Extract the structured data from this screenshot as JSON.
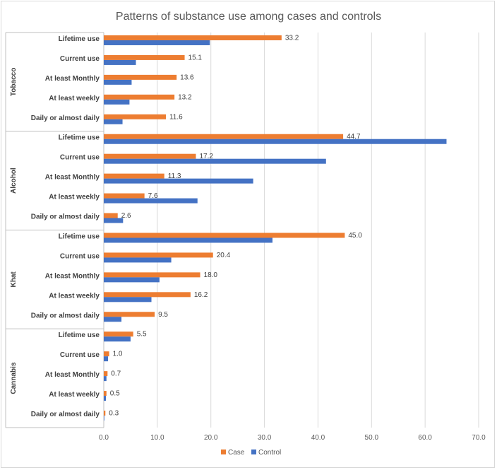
{
  "chart_data": {
    "type": "bar",
    "orientation": "horizontal",
    "title": "Patterns of substance use among cases and controls",
    "xlim": [
      0,
      70
    ],
    "xticks": [
      "0.0",
      "10.0",
      "20.0",
      "30.0",
      "40.0",
      "50.0",
      "60.0",
      "70.0"
    ],
    "grid": true,
    "legend_position": "bottom",
    "series": [
      {
        "name": "Case",
        "color": "#ED7D31"
      },
      {
        "name": "Control",
        "color": "#4472C4"
      }
    ],
    "groups": [
      {
        "name": "Tobacco",
        "categories": [
          {
            "label": "Lifetime use",
            "case": 33.2,
            "case_label": "33.2",
            "control": 19.8
          },
          {
            "label": "Current use",
            "case": 15.1,
            "case_label": "15.1",
            "control": 6.0
          },
          {
            "label": "At least Monthly",
            "case": 13.6,
            "case_label": "13.6",
            "control": 5.2
          },
          {
            "label": "At least weekly",
            "case": 13.2,
            "case_label": "13.2",
            "control": 4.8
          },
          {
            "label": "Daily or almost daily",
            "case": 11.6,
            "case_label": "11.6",
            "control": 3.5
          }
        ]
      },
      {
        "name": "Alcohol",
        "categories": [
          {
            "label": "Lifetime use",
            "case": 44.7,
            "case_label": "44.7",
            "control": 64.0
          },
          {
            "label": "Current use",
            "case": 17.2,
            "case_label": "17.2",
            "control": 41.5
          },
          {
            "label": "At least Monthly",
            "case": 11.3,
            "case_label": "11.3",
            "control": 27.9
          },
          {
            "label": "At least weekly",
            "case": 7.6,
            "case_label": "7.6",
            "control": 17.5
          },
          {
            "label": "Daily or almost daily",
            "case": 2.6,
            "case_label": "2.6",
            "control": 3.6
          }
        ]
      },
      {
        "name": "Khat",
        "categories": [
          {
            "label": "Lifetime use",
            "case": 45.0,
            "case_label": "45.0",
            "control": 31.5
          },
          {
            "label": "Current use",
            "case": 20.4,
            "case_label": "20.4",
            "control": 12.6
          },
          {
            "label": "At least Monthly",
            "case": 18.0,
            "case_label": "18.0",
            "control": 10.4
          },
          {
            "label": "At least weekly",
            "case": 16.2,
            "case_label": "16.2",
            "control": 8.9
          },
          {
            "label": "Daily or almost daily",
            "case": 9.5,
            "case_label": "9.5",
            "control": 3.3
          }
        ]
      },
      {
        "name": "Cannabis",
        "categories": [
          {
            "label": "Lifetime use",
            "case": 5.5,
            "case_label": "5.5",
            "control": 5.0
          },
          {
            "label": "Current use",
            "case": 1.0,
            "case_label": "1.0",
            "control": 0.8
          },
          {
            "label": "At least Monthly",
            "case": 0.7,
            "case_label": "0.7",
            "control": 0.5
          },
          {
            "label": "At least weekly",
            "case": 0.5,
            "case_label": "0.5",
            "control": 0.4
          },
          {
            "label": "Daily or almost daily",
            "case": 0.3,
            "case_label": "0.3",
            "control": 0.1
          }
        ]
      }
    ]
  }
}
